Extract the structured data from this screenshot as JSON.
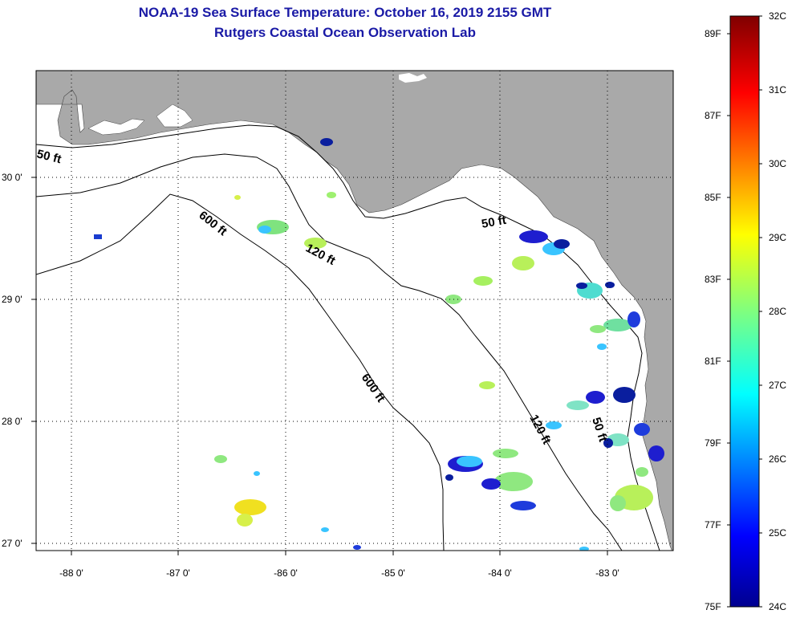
{
  "title": {
    "line1": "NOAA-19 Sea Surface Temperature:  October 16, 2019 2155 GMT",
    "line2": "Rutgers Coastal Ocean Observation Lab"
  },
  "map": {
    "lat_ticks": [
      "30 0'",
      "29 0'",
      "28 0'",
      "27 0'"
    ],
    "lon_ticks": [
      "-88 0'",
      "-87 0'",
      "-86 0'",
      "-85 0'",
      "-84 0'",
      "-83 0'"
    ],
    "depth_labels": [
      {
        "label": "50 ft"
      },
      {
        "label": "600 ft"
      },
      {
        "label": "120 ft"
      },
      {
        "label": "50 ft"
      },
      {
        "label": "600 ft"
      },
      {
        "label": "120 ft"
      },
      {
        "label": "50 ft"
      }
    ],
    "colors": {
      "land": "#a9a9a9",
      "ocean": "#ffffff",
      "grid": "#000000"
    }
  },
  "colorbar": {
    "fahrenheit_labels": [
      "89F",
      "87F",
      "85F",
      "83F",
      "81F",
      "79F",
      "77F",
      "75F"
    ],
    "celsius_labels": [
      "32C",
      "31C",
      "30C",
      "29C",
      "28C",
      "27C",
      "26C",
      "25C",
      "24C"
    ],
    "range_c": [
      24,
      32
    ],
    "colormap": "jet"
  }
}
